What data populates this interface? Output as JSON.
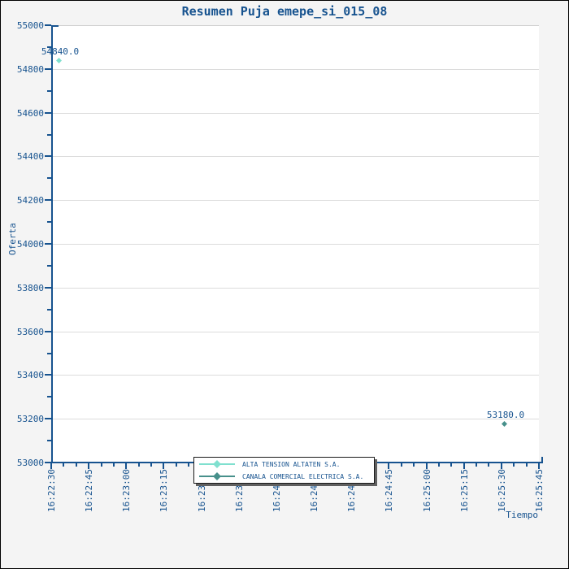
{
  "title": "Resumen Puja emepe_si_015_08",
  "colors": {
    "text": "#17538f",
    "axis": "#17538f",
    "grid": "#dcdcdc",
    "frame": "#cfcfcf",
    "background": "#f4f4f4",
    "plot_background": "#ffffff",
    "image_border": "#000000",
    "legend_border": "#1a1a1a",
    "legend_shadow": "#606060"
  },
  "chart_data": {
    "type": "scatter",
    "title": "Resumen Puja emepe_si_015_08",
    "xlabel": "Tiempo",
    "ylabel": "Oferta",
    "ylim": [
      53000,
      55000
    ],
    "y_major_step": 200,
    "y_minor_step": 100,
    "grid": "horizontal-major",
    "legend_position": "bottom-center-overlapping-axis",
    "x_tick_labels": [
      "16:22:30",
      "16:22:45",
      "16:23:00",
      "16:23:15",
      "16:23:30",
      "16:23:45",
      "16:24:00",
      "16:24:15",
      "16:24:30",
      "16:24:45",
      "16:25:00",
      "16:25:15",
      "16:25:30",
      "16:25:45"
    ],
    "x_minor_divisions": 3,
    "y_tick_labels": [
      "55000",
      "54800",
      "54600",
      "54400",
      "54200",
      "54000",
      "53800",
      "53600",
      "53400",
      "53200",
      "53000"
    ],
    "series": [
      {
        "name": "ALTA TENSION ALTATEN S.A.",
        "color": "#80e0cf",
        "marker": "diamond",
        "points": [
          {
            "time": "16:22:33",
            "value": 54840.0,
            "label": "54840.0"
          }
        ]
      },
      {
        "name": "CANALA COMERCIAL ELECTRICA S.A.",
        "color": "#47908b",
        "marker": "diamond",
        "points": [
          {
            "time": "16:25:31",
            "value": 53180.0,
            "label": "53180.0"
          }
        ]
      }
    ]
  }
}
